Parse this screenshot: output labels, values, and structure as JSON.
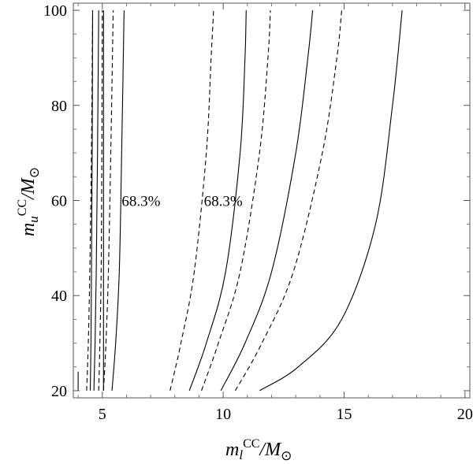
{
  "chart_data": {
    "type": "line",
    "xlabel": "m_l^CC/M_⊙",
    "ylabel": "m_u^CC/M_⊙",
    "xlim": [
      3.8,
      20.2
    ],
    "ylim": [
      18.5,
      101.5
    ],
    "x_ticks": [
      5,
      10,
      15,
      20
    ],
    "y_ticks": [
      20,
      40,
      60,
      80,
      100
    ],
    "grid": false,
    "series": [
      {
        "style": "solid",
        "x": [
          4.0,
          4.0
        ],
        "y": [
          20,
          24
        ]
      },
      {
        "style": "dashed",
        "x": [
          4.35,
          4.42,
          4.48,
          4.55,
          4.6
        ],
        "y": [
          20,
          30,
          45,
          70,
          100
        ]
      },
      {
        "style": "solid",
        "x": [
          4.5,
          4.53,
          4.55,
          4.58,
          4.6
        ],
        "y": [
          20,
          30,
          45,
          70,
          100
        ]
      },
      {
        "style": "solid",
        "x": [
          4.65,
          4.7,
          4.75,
          4.8,
          4.85
        ],
        "y": [
          20,
          30,
          45,
          70,
          100
        ]
      },
      {
        "style": "dashed",
        "x": [
          4.85,
          4.9,
          4.95,
          4.98,
          5.0
        ],
        "y": [
          20,
          30,
          45,
          70,
          100
        ]
      },
      {
        "style": "solid",
        "x": [
          5.05,
          5.05,
          5.05,
          5.05,
          5.05
        ],
        "y": [
          20,
          30,
          45,
          70,
          100
        ]
      },
      {
        "style": "dashed",
        "x": [
          5.05,
          5.15,
          5.25,
          5.35,
          5.45
        ],
        "y": [
          20,
          30,
          45,
          70,
          100
        ]
      },
      {
        "style": "solid",
        "x": [
          5.4,
          5.55,
          5.7,
          5.8,
          5.9
        ],
        "y": [
          20,
          30,
          45,
          70,
          100
        ]
      },
      {
        "style": "dashed",
        "x": [
          7.8,
          8.25,
          8.8,
          9.3,
          9.5,
          9.6
        ],
        "y": [
          20,
          30,
          45,
          70,
          90,
          100
        ]
      },
      {
        "style": "solid",
        "x": [
          8.6,
          9.3,
          10.1,
          10.7,
          10.9,
          10.95
        ],
        "y": [
          20,
          30,
          45,
          70,
          90,
          100
        ]
      },
      {
        "style": "dashed",
        "x": [
          9.1,
          9.8,
          10.7,
          11.5,
          11.85,
          11.95
        ],
        "y": [
          20,
          30,
          45,
          70,
          90,
          100
        ]
      },
      {
        "style": "solid",
        "x": [
          9.9,
          10.9,
          12.0,
          13.0,
          13.5,
          13.7
        ],
        "y": [
          20,
          30,
          45,
          70,
          90,
          100
        ]
      },
      {
        "style": "dashed",
        "x": [
          10.5,
          11.6,
          12.9,
          14.1,
          14.7,
          14.9
        ],
        "y": [
          20,
          30,
          45,
          70,
          90,
          100
        ]
      },
      {
        "style": "solid",
        "x": [
          11.5,
          13.1,
          14.9,
          16.3,
          17.0,
          17.4
        ],
        "y": [
          20,
          25,
          35,
          55,
          80,
          100
        ]
      }
    ],
    "annotations": [
      {
        "text": "68.3%",
        "x": 6.6,
        "y": 60
      },
      {
        "text": "68.3%",
        "x": 10.0,
        "y": 60
      }
    ]
  }
}
